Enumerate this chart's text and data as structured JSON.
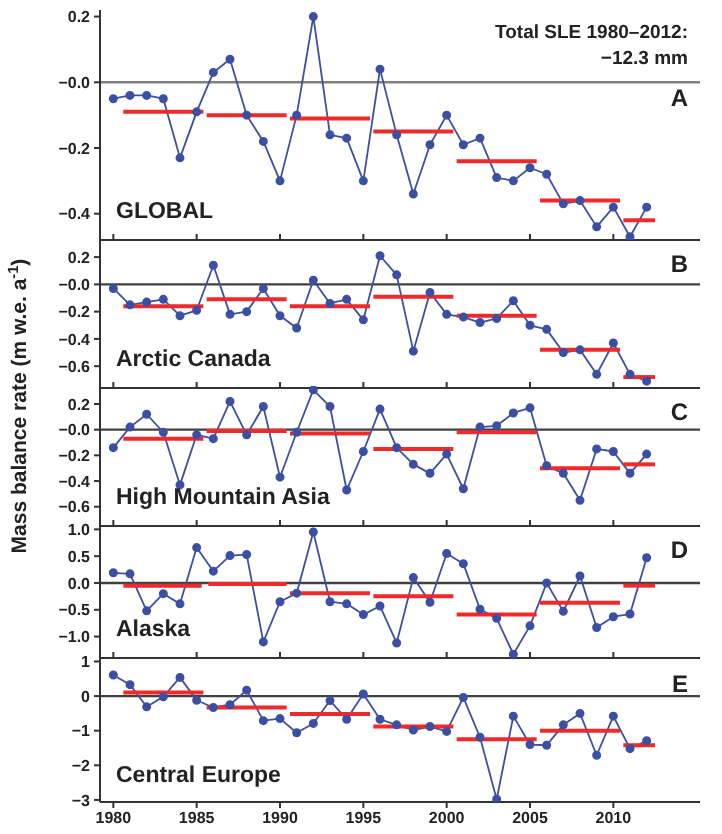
{
  "chart_data": [
    {
      "type": "line",
      "title": "GLOBAL",
      "annotations": [
        "Total SLE 1980–2012:",
        "−12.3 mm",
        "A"
      ],
      "marker": "circle",
      "tick_labels": "y",
      "x": [
        1980,
        1981,
        1982,
        1983,
        1984,
        1985,
        1986,
        1987,
        1988,
        1989,
        1990,
        1991,
        1992,
        1993,
        1994,
        1995,
        1996,
        1997,
        1998,
        1999,
        2000,
        2001,
        2002,
        2003,
        2004,
        2005,
        2006,
        2007,
        2008,
        2009,
        2010,
        2011,
        2012
      ],
      "xlim": [
        1979.2,
        2015.2
      ],
      "xticks": [
        {
          "value": 1980,
          "label": null
        },
        {
          "value": 1985,
          "label": null
        },
        {
          "value": 1990,
          "label": null
        },
        {
          "value": 1995,
          "label": null
        },
        {
          "value": 2000,
          "label": null
        },
        {
          "value": 2005,
          "label": null
        },
        {
          "value": 2010,
          "label": null
        }
      ],
      "ylim": [
        -0.48,
        0.22
      ],
      "yticks": [
        0.2,
        {
          "value": 0,
          "label": "−0.0"
        },
        {
          "value": -0.2,
          "label": "−0.2"
        },
        {
          "value": -0.4,
          "label": "−0.4"
        }
      ],
      "ref_lines": [
        {
          "axis": "y",
          "value": 0,
          "color": "#808080"
        }
      ],
      "series": [
        {
          "color": "#3b4fa3",
          "values": [
            -0.05,
            -0.04,
            -0.04,
            -0.05,
            -0.23,
            -0.09,
            0.03,
            0.07,
            -0.1,
            -0.18,
            -0.3,
            -0.1,
            0.2,
            -0.16,
            -0.17,
            -0.3,
            0.04,
            -0.16,
            -0.34,
            -0.19,
            -0.1,
            -0.19,
            -0.17,
            -0.29,
            -0.3,
            -0.26,
            -0.28,
            -0.37,
            -0.36,
            -0.44,
            -0.38,
            -0.47,
            -0.38
          ]
        },
        {
          "color": "#ee2a2a",
          "marker": "none",
          "x": [
            1980.6,
            1985.4
          ],
          "values": [
            -0.09,
            -0.09
          ]
        },
        {
          "color": "#ee2a2a",
          "marker": "none",
          "x": [
            1985.6,
            1990.4
          ],
          "values": [
            -0.1,
            -0.1
          ]
        },
        {
          "color": "#ee2a2a",
          "marker": "none",
          "x": [
            1990.6,
            1995.4
          ],
          "values": [
            -0.11,
            -0.11
          ]
        },
        {
          "color": "#ee2a2a",
          "marker": "none",
          "x": [
            1995.6,
            2000.4
          ],
          "values": [
            -0.15,
            -0.15
          ]
        },
        {
          "color": "#ee2a2a",
          "marker": "none",
          "x": [
            2000.6,
            2005.4
          ],
          "values": [
            -0.24,
            -0.24
          ]
        },
        {
          "color": "#ee2a2a",
          "marker": "none",
          "x": [
            2005.6,
            2010.4
          ],
          "values": [
            -0.36,
            -0.36
          ]
        },
        {
          "color": "#ee2a2a",
          "marker": "none",
          "x": [
            2010.6,
            2012.5
          ],
          "values": [
            -0.42,
            -0.42
          ]
        }
      ]
    },
    {
      "type": "line",
      "title": "Arctic Canada",
      "annotations": [
        "B"
      ],
      "marker": "circle",
      "tick_labels": "y",
      "x": [
        1980,
        1981,
        1982,
        1983,
        1984,
        1985,
        1986,
        1987,
        1988,
        1989,
        1990,
        1991,
        1992,
        1993,
        1994,
        1995,
        1996,
        1997,
        1998,
        1999,
        2000,
        2001,
        2002,
        2003,
        2004,
        2005,
        2006,
        2007,
        2008,
        2009,
        2010,
        2011,
        2012
      ],
      "xlim": [
        1979.2,
        2015.2
      ],
      "xticks": [
        {
          "value": 1980,
          "label": null
        },
        {
          "value": 1985,
          "label": null
        },
        {
          "value": 1990,
          "label": null
        },
        {
          "value": 1995,
          "label": null
        },
        {
          "value": 2000,
          "label": null
        },
        {
          "value": 2005,
          "label": null
        },
        {
          "value": 2010,
          "label": null
        }
      ],
      "ylim": [
        -0.76,
        0.34
      ],
      "yticks": [
        0.2,
        {
          "value": 0,
          "label": "−0.0"
        },
        {
          "value": -0.2,
          "label": "−0.2"
        },
        {
          "value": -0.4,
          "label": "−0.4"
        },
        {
          "value": -0.6,
          "label": "−0.6"
        }
      ],
      "ref_lines": [
        {
          "axis": "y",
          "value": 0,
          "color": "#404040"
        }
      ],
      "series": [
        {
          "color": "#3b4fa3",
          "values": [
            -0.03,
            -0.15,
            -0.13,
            -0.11,
            -0.23,
            -0.19,
            0.14,
            -0.22,
            -0.2,
            -0.03,
            -0.23,
            -0.32,
            0.03,
            -0.14,
            -0.11,
            -0.26,
            0.21,
            0.07,
            -0.49,
            -0.06,
            -0.22,
            -0.24,
            -0.28,
            -0.25,
            -0.12,
            -0.3,
            -0.33,
            -0.5,
            -0.48,
            -0.66,
            -0.43,
            -0.66,
            -0.71
          ]
        },
        {
          "color": "#ee2a2a",
          "marker": "none",
          "x": [
            1980.6,
            1985.4
          ],
          "values": [
            -0.16,
            -0.16
          ]
        },
        {
          "color": "#ee2a2a",
          "marker": "none",
          "x": [
            1985.6,
            1990.4
          ],
          "values": [
            -0.11,
            -0.11
          ]
        },
        {
          "color": "#ee2a2a",
          "marker": "none",
          "x": [
            1990.6,
            1995.4
          ],
          "values": [
            -0.16,
            -0.16
          ]
        },
        {
          "color": "#ee2a2a",
          "marker": "none",
          "x": [
            1995.6,
            2000.4
          ],
          "values": [
            -0.09,
            -0.09
          ]
        },
        {
          "color": "#ee2a2a",
          "marker": "none",
          "x": [
            2000.6,
            2005.4
          ],
          "values": [
            -0.23,
            -0.23
          ]
        },
        {
          "color": "#ee2a2a",
          "marker": "none",
          "x": [
            2005.6,
            2010.4
          ],
          "values": [
            -0.48,
            -0.48
          ]
        },
        {
          "color": "#ee2a2a",
          "marker": "none",
          "x": [
            2010.6,
            2012.5
          ],
          "values": [
            -0.68,
            -0.68
          ]
        }
      ]
    },
    {
      "type": "line",
      "title": "High Mountain Asia",
      "annotations": [
        "C"
      ],
      "ylabel": "Mass balance rate (m w.e. a$^{-1}$)",
      "marker": "circle",
      "tick_labels": "y",
      "x": [
        1980,
        1981,
        1982,
        1983,
        1984,
        1985,
        1986,
        1987,
        1988,
        1989,
        1990,
        1991,
        1992,
        1993,
        1994,
        1995,
        1996,
        1997,
        1998,
        1999,
        2000,
        2001,
        2002,
        2003,
        2004,
        2005,
        2006,
        2007,
        2008,
        2009,
        2010,
        2011,
        2012
      ],
      "xlim": [
        1979.2,
        2015.2
      ],
      "xticks": [
        {
          "value": 1980,
          "label": null
        },
        {
          "value": 1985,
          "label": null
        },
        {
          "value": 1990,
          "label": null
        },
        {
          "value": 1995,
          "label": null
        },
        {
          "value": 2000,
          "label": null
        },
        {
          "value": 2005,
          "label": null
        },
        {
          "value": 2010,
          "label": null
        }
      ],
      "ylim": [
        -0.75,
        0.34
      ],
      "yticks": [
        0.2,
        {
          "value": 0,
          "label": "−0.0"
        },
        {
          "value": -0.2,
          "label": "−0.2"
        },
        {
          "value": -0.4,
          "label": "−0.4"
        },
        {
          "value": -0.6,
          "label": "−0.6"
        }
      ],
      "ref_lines": [
        {
          "axis": "y",
          "value": 0,
          "color": "#404040"
        }
      ],
      "series": [
        {
          "color": "#3b4fa3",
          "values": [
            -0.14,
            0.02,
            0.12,
            -0.02,
            -0.43,
            -0.04,
            -0.07,
            0.22,
            -0.04,
            0.18,
            -0.37,
            -0.02,
            0.31,
            0.18,
            -0.47,
            -0.17,
            0.16,
            -0.14,
            -0.27,
            -0.34,
            -0.19,
            -0.46,
            0.02,
            0.03,
            0.13,
            0.17,
            -0.28,
            -0.34,
            -0.55,
            -0.15,
            -0.17,
            -0.34,
            -0.19
          ]
        },
        {
          "color": "#ee2a2a",
          "marker": "none",
          "x": [
            1980.6,
            1985.4
          ],
          "values": [
            -0.07,
            -0.07
          ]
        },
        {
          "color": "#ee2a2a",
          "marker": "none",
          "x": [
            1985.6,
            1990.4
          ],
          "values": [
            -0.01,
            -0.01
          ]
        },
        {
          "color": "#ee2a2a",
          "marker": "none",
          "x": [
            1990.6,
            1995.4
          ],
          "values": [
            -0.03,
            -0.03
          ]
        },
        {
          "color": "#ee2a2a",
          "marker": "none",
          "x": [
            1995.6,
            2000.4
          ],
          "values": [
            -0.15,
            -0.15
          ]
        },
        {
          "color": "#ee2a2a",
          "marker": "none",
          "x": [
            2000.6,
            2005.4
          ],
          "values": [
            -0.02,
            -0.02
          ]
        },
        {
          "color": "#ee2a2a",
          "marker": "none",
          "x": [
            2005.6,
            2010.4
          ],
          "values": [
            -0.3,
            -0.3
          ]
        },
        {
          "color": "#ee2a2a",
          "marker": "none",
          "x": [
            2010.6,
            2012.5
          ],
          "values": [
            -0.27,
            -0.27
          ]
        }
      ]
    },
    {
      "type": "line",
      "title": "Alaska",
      "annotations": [
        "D"
      ],
      "marker": "circle",
      "tick_labels": "y",
      "x": [
        1980,
        1981,
        1982,
        1983,
        1984,
        1985,
        1986,
        1987,
        1988,
        1989,
        1990,
        1991,
        1992,
        1993,
        1994,
        1995,
        1996,
        1997,
        1998,
        1999,
        2000,
        2001,
        2002,
        2003,
        2004,
        2005,
        2006,
        2007,
        2008,
        2009,
        2010,
        2011,
        2012
      ],
      "xlim": [
        1979.2,
        2015.2
      ],
      "xticks": [
        {
          "value": 1980,
          "label": null
        },
        {
          "value": 1985,
          "label": null
        },
        {
          "value": 1990,
          "label": null
        },
        {
          "value": 1995,
          "label": null
        },
        {
          "value": 2000,
          "label": null
        },
        {
          "value": 2005,
          "label": null
        },
        {
          "value": 2010,
          "label": null
        }
      ],
      "ylim": [
        -1.4,
        1.1
      ],
      "yticks": [
        {
          "value": 1,
          "label": "1.0"
        },
        {
          "value": 0.5,
          "label": "0.5"
        },
        {
          "value": 0,
          "label": "0.0"
        },
        {
          "value": -0.5,
          "label": "−0.5"
        },
        {
          "value": -1,
          "label": "−1.0"
        }
      ],
      "ref_lines": [
        {
          "axis": "y",
          "value": 0,
          "color": "#404040"
        }
      ],
      "series": [
        {
          "color": "#3b4fa3",
          "values": [
            0.19,
            0.17,
            -0.52,
            -0.2,
            -0.39,
            0.66,
            0.22,
            0.51,
            0.53,
            -1.1,
            -0.35,
            -0.19,
            0.95,
            -0.35,
            -0.39,
            -0.59,
            -0.43,
            -1.12,
            0.1,
            -0.36,
            0.55,
            0.36,
            -0.49,
            -0.66,
            -1.33,
            -0.8,
            0.0,
            -0.53,
            0.13,
            -0.83,
            -0.63,
            -0.58,
            0.47
          ]
        },
        {
          "color": "#ee2a2a",
          "marker": "none",
          "x": [
            1980.6,
            1985.3
          ],
          "values": [
            -0.05,
            -0.05
          ]
        },
        {
          "color": "#ee2a2a",
          "marker": "none",
          "x": [
            1985.7,
            1990.4
          ],
          "values": [
            -0.02,
            -0.02
          ]
        },
        {
          "color": "#ee2a2a",
          "marker": "none",
          "x": [
            1990.6,
            1995.4
          ],
          "values": [
            -0.19,
            -0.19
          ]
        },
        {
          "color": "#ee2a2a",
          "marker": "none",
          "x": [
            1995.6,
            2000.4
          ],
          "values": [
            -0.25,
            -0.25
          ]
        },
        {
          "color": "#ee2a2a",
          "marker": "none",
          "x": [
            2000.6,
            2005.4
          ],
          "values": [
            -0.59,
            -0.59
          ]
        },
        {
          "color": "#ee2a2a",
          "marker": "none",
          "x": [
            2005.6,
            2010.4
          ],
          "values": [
            -0.37,
            -0.37
          ]
        },
        {
          "color": "#ee2a2a",
          "marker": "none",
          "x": [
            2010.6,
            2012.5
          ],
          "values": [
            -0.05,
            -0.05
          ]
        }
      ]
    },
    {
      "type": "line",
      "title": "Central Europe",
      "annotations": [
        "E"
      ],
      "marker": "circle",
      "x": [
        1980,
        1981,
        1982,
        1983,
        1984,
        1985,
        1986,
        1987,
        1988,
        1989,
        1990,
        1991,
        1992,
        1993,
        1994,
        1995,
        1996,
        1997,
        1998,
        1999,
        2000,
        2001,
        2002,
        2003,
        2004,
        2005,
        2006,
        2007,
        2008,
        2009,
        2010,
        2011,
        2012
      ],
      "xlim": [
        1979.2,
        2015.2
      ],
      "xticks": [
        1980,
        1985,
        1990,
        1995,
        2000,
        2005,
        2010
      ],
      "ylim": [
        -3.06,
        1.1
      ],
      "yticks": [
        1,
        0,
        {
          "value": -1,
          "label": "−1"
        },
        {
          "value": -2,
          "label": "−2"
        },
        {
          "value": -3,
          "label": "−3"
        }
      ],
      "ref_lines": [
        {
          "axis": "y",
          "value": 0,
          "color": "#404040"
        }
      ],
      "series": [
        {
          "color": "#3b4fa3",
          "values": [
            0.61,
            0.33,
            -0.31,
            -0.02,
            0.54,
            -0.12,
            -0.33,
            -0.25,
            0.17,
            -0.71,
            -0.65,
            -1.06,
            -0.79,
            -0.13,
            -0.67,
            0.06,
            -0.67,
            -0.83,
            -0.98,
            -0.88,
            -1.02,
            -0.04,
            -1.19,
            -2.98,
            -0.58,
            -1.4,
            -1.42,
            -0.83,
            -0.5,
            -1.71,
            -0.58,
            -1.52,
            -1.29
          ]
        },
        {
          "color": "#ee2a2a",
          "marker": "none",
          "x": [
            1980.6,
            1985.4
          ],
          "values": [
            0.1,
            0.1
          ]
        },
        {
          "color": "#ee2a2a",
          "marker": "none",
          "x": [
            1985.6,
            1990.4
          ],
          "values": [
            -0.33,
            -0.33
          ]
        },
        {
          "color": "#ee2a2a",
          "marker": "none",
          "x": [
            1990.6,
            1995.4
          ],
          "values": [
            -0.52,
            -0.52
          ]
        },
        {
          "color": "#ee2a2a",
          "marker": "none",
          "x": [
            1995.6,
            2000.4
          ],
          "values": [
            -0.88,
            -0.88
          ]
        },
        {
          "color": "#ee2a2a",
          "marker": "none",
          "x": [
            2000.6,
            2005.4
          ],
          "values": [
            -1.25,
            -1.25
          ]
        },
        {
          "color": "#ee2a2a",
          "marker": "none",
          "x": [
            2005.6,
            2010.4
          ],
          "values": [
            -1.0,
            -1.0
          ]
        },
        {
          "color": "#ee2a2a",
          "marker": "none",
          "x": [
            2010.6,
            2012.5
          ],
          "values": [
            -1.42,
            -1.42
          ]
        }
      ]
    }
  ]
}
